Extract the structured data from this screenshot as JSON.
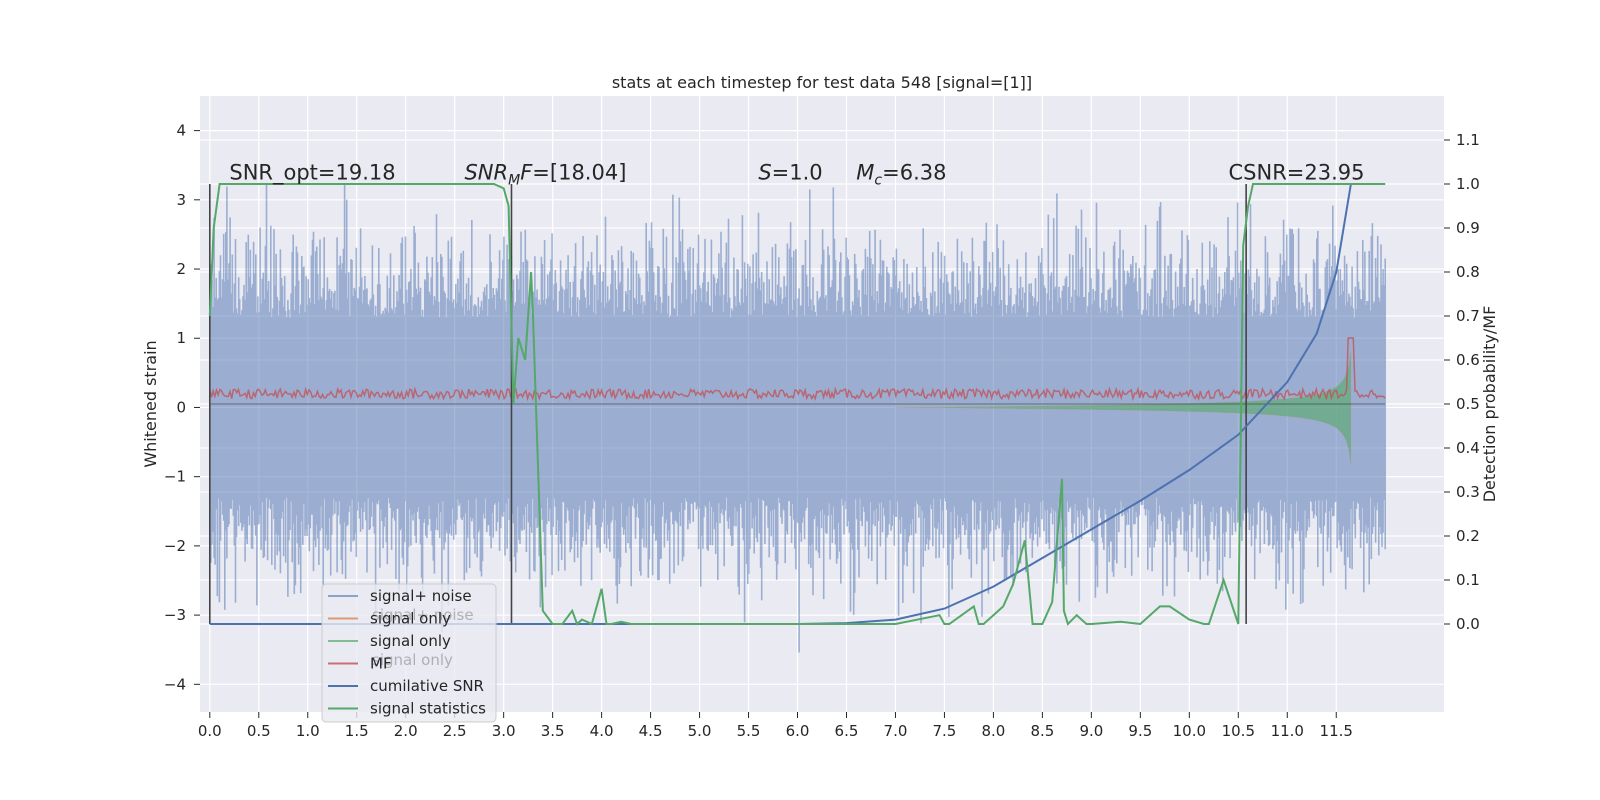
{
  "chart_data": {
    "type": "line",
    "title": "stats at each timestep for test data 548 [signal=[1]]",
    "ylabel": "Whitened strain",
    "y2label": "Detection probability/MF",
    "xlim": [
      -0.1,
      12.6
    ],
    "ylim": [
      -4.4,
      4.5
    ],
    "y2lim": [
      -0.2,
      1.2
    ],
    "xticks": [
      "0.0",
      "0.5",
      "1.0",
      "1.5",
      "2.0",
      "2.5",
      "3.0",
      "3.5",
      "4.0",
      "4.5",
      "5.0",
      "5.5",
      "6.0",
      "6.5",
      "7.0",
      "7.5",
      "8.0",
      "8.5",
      "9.0",
      "9.5",
      "10.0",
      "10.5",
      "11.0",
      "11.5"
    ],
    "xtick_values": [
      0,
      0.5,
      1,
      1.5,
      2,
      2.5,
      3,
      3.5,
      4,
      4.5,
      5,
      5.5,
      6,
      6.5,
      7,
      7.5,
      8,
      8.5,
      9,
      9.5,
      10,
      10.5,
      11,
      11.5
    ],
    "yticks": [
      "4",
      "3",
      "2",
      "1",
      "0",
      "−1",
      "−2",
      "−3",
      "−4"
    ],
    "ytick_values": [
      4,
      3,
      2,
      1,
      0,
      -1,
      -2,
      -3,
      -4
    ],
    "y2ticks": [
      "1.1",
      "1.0",
      "0.9",
      "0.8",
      "0.7",
      "0.6",
      "0.5",
      "0.4",
      "0.3",
      "0.2",
      "0.1",
      "0.0"
    ],
    "y2tick_values": [
      1.1,
      1.0,
      0.9,
      0.8,
      0.7,
      0.6,
      0.5,
      0.4,
      0.3,
      0.2,
      0.1,
      0.0
    ],
    "grid": true,
    "legend_position": "lower-left",
    "colors": {
      "background": "#eaeaf2",
      "grid": "#ffffff",
      "noise": "#4c72b0",
      "signal_only_orange": "#dd8452",
      "signal_only_green": "#55a868",
      "mf": "#c44e52",
      "cumulative_snr": "#4c72b0",
      "signal_statistics": "#55a868",
      "vlines": "#444444"
    },
    "annotations": [
      {
        "name": "snr-opt",
        "text": "SNR_opt=19.18",
        "x": 0.2,
        "y2": 1.01
      },
      {
        "name": "snr-mf",
        "text_main": "SNR",
        "text_sub": "M",
        "text_rest": "F=[18.04]",
        "x": 2.6,
        "y2": 1.01
      },
      {
        "name": "s-value",
        "text_main": "S",
        "text_rest": "=1.0",
        "x": 5.6,
        "y2": 1.01
      },
      {
        "name": "mc-value",
        "text_main": "M",
        "text_sub": "c",
        "text_rest": "=6.38",
        "x": 6.6,
        "y2": 1.01
      },
      {
        "name": "csnr",
        "text": "CSNR=23.95",
        "x": 10.4,
        "y2": 1.01
      }
    ],
    "vertical_lines": [
      0.0,
      3.08,
      10.58
    ],
    "series": [
      {
        "name": "signal+ noise",
        "style": "noise",
        "x_range": [
          0.0,
          12.0
        ],
        "amplitude": 2.1
      },
      {
        "name": "signal only",
        "style": "chirp",
        "chirp_start": 7.0,
        "chirp_peak": 11.65,
        "peak_amp": 1.9
      },
      {
        "name": "signal only",
        "style": "chirp-green"
      },
      {
        "name": "MF",
        "style": "mf-baseline",
        "y2_level": 0.5,
        "peak_x": 11.65,
        "peak_y2": 0.65
      },
      {
        "name": "cumilative SNR",
        "style": "curve",
        "x": [
          0.0,
          6.0,
          6.5,
          7.0,
          7.5,
          8.0,
          8.5,
          9.0,
          9.5,
          10.0,
          10.5,
          11.0,
          11.3,
          11.5,
          11.65
        ],
        "y2": [
          0.0,
          0.0,
          0.002,
          0.01,
          0.035,
          0.085,
          0.15,
          0.215,
          0.28,
          0.35,
          0.43,
          0.55,
          0.66,
          0.8,
          1.0
        ]
      },
      {
        "name": "signal statistics",
        "style": "step",
        "x": [
          0.0,
          0.04,
          0.1,
          0.15,
          2.9,
          3.0,
          3.05,
          3.1,
          3.15,
          3.22,
          3.28,
          3.3,
          3.4,
          3.5,
          3.6,
          3.7,
          3.75,
          3.8,
          3.9,
          4.0,
          4.05,
          4.1,
          4.2,
          4.3,
          4.5,
          5.0,
          6.0,
          7.0,
          7.45,
          7.5,
          7.55,
          7.8,
          7.85,
          7.9,
          8.0,
          8.1,
          8.2,
          8.32,
          8.4,
          8.5,
          8.6,
          8.7,
          8.72,
          8.76,
          8.85,
          8.95,
          9.0,
          9.3,
          9.5,
          9.7,
          9.8,
          10.0,
          10.15,
          10.2,
          10.35,
          10.5,
          10.55,
          10.6,
          10.65,
          10.75,
          11.0,
          12.0
        ],
        "y2": [
          0.7,
          0.9,
          1.0,
          1.0,
          1.0,
          0.99,
          0.95,
          0.5,
          0.65,
          0.6,
          0.8,
          0.7,
          0.03,
          0.0,
          0.0,
          0.03,
          0.0,
          0.01,
          0.0,
          0.08,
          0.0,
          0.0,
          0.005,
          0.0,
          0.0,
          0.0,
          0.0,
          0.0,
          0.02,
          0.0,
          0.0,
          0.04,
          0.0,
          0.0,
          0.02,
          0.04,
          0.09,
          0.19,
          0.0,
          0.0,
          0.05,
          0.33,
          0.03,
          0.0,
          0.02,
          0.0,
          0.0,
          0.005,
          0.0,
          0.04,
          0.04,
          0.01,
          0.0,
          0.0,
          0.1,
          0.0,
          0.86,
          0.95,
          1.0,
          1.0,
          1.0,
          1.0
        ]
      }
    ],
    "legend": [
      "signal+ noise",
      "signal only",
      "signal only",
      "MF",
      "cumilative SNR",
      "signal statistics"
    ],
    "legend_ghost": [
      "signal+ noise",
      "signal only"
    ]
  }
}
